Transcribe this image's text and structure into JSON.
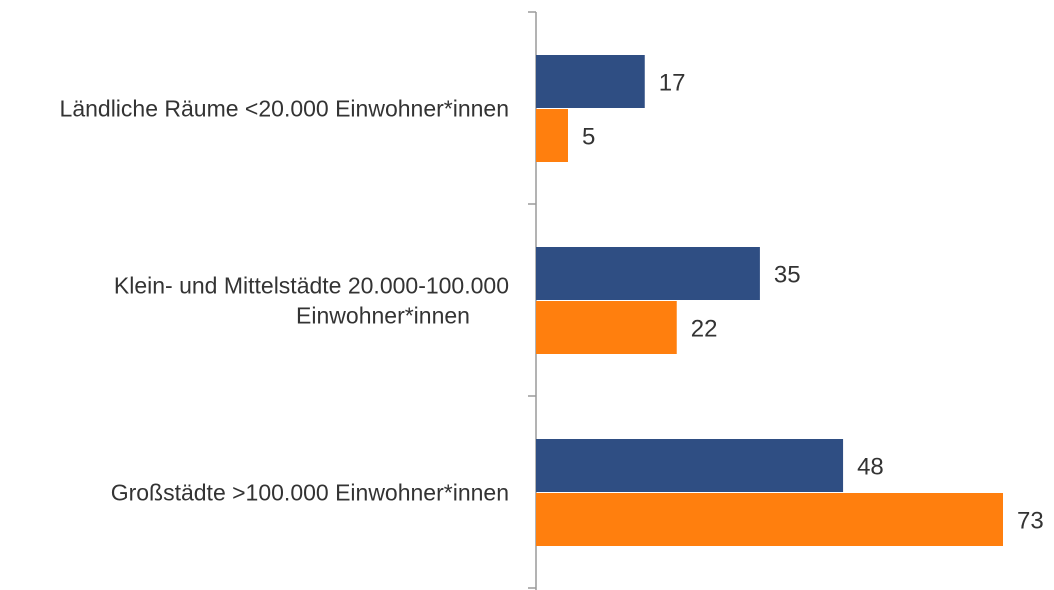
{
  "chart_data": {
    "type": "bar",
    "orientation": "horizontal",
    "categories": [
      [
        "Ländliche Räume <20.000 Einwohner*innen"
      ],
      [
        "Klein- und Mittelstädte 20.000-100.000",
        "Einwohner*innen"
      ],
      [
        "Großstädte >100.000 Einwohner*innen"
      ]
    ],
    "series": [
      {
        "values": [
          17,
          35,
          48
        ],
        "color": "#2F4E83"
      },
      {
        "values": [
          5,
          22,
          73
        ],
        "color": "#FF7F0E"
      }
    ],
    "xlim": [
      0,
      73
    ],
    "grid": false,
    "legend": "none",
    "title": "",
    "xlabel": "",
    "ylabel": ""
  }
}
